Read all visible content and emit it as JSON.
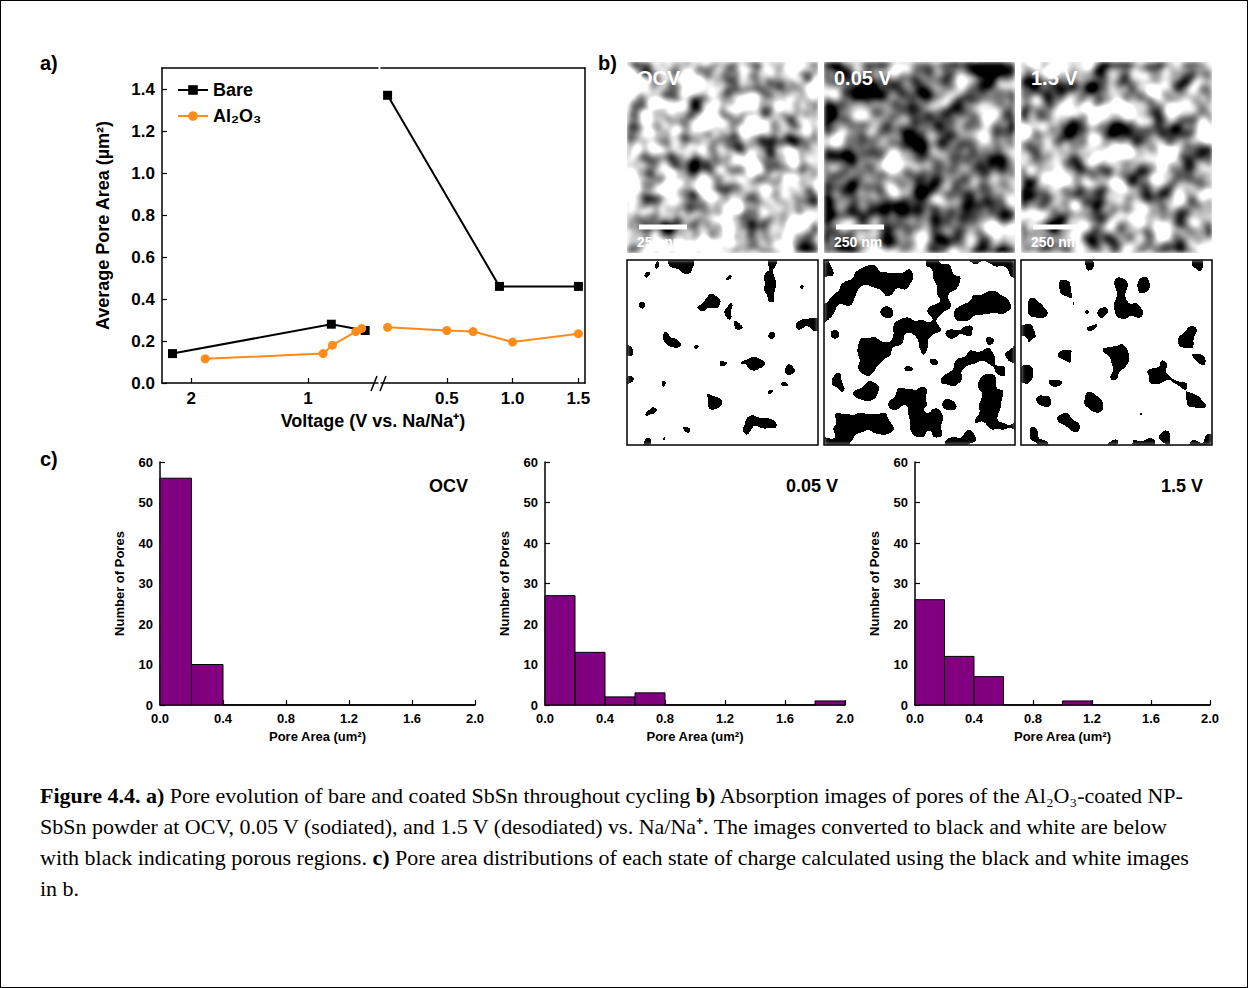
{
  "panel_labels": [
    "a)",
    "b)",
    "c)"
  ],
  "chart_data": [
    {
      "type": "line",
      "xlabel": "Voltage (V vs. Na/Na⁺)",
      "ylabel": "Average Pore Area (µm²)",
      "ylim": [
        0,
        1.5
      ],
      "yticks": [
        {
          "value": 0,
          "label": "0.0"
        },
        0.2,
        0.4,
        0.6,
        0.8,
        {
          "value": 1,
          "label": "1.0"
        },
        1.2,
        1.4
      ],
      "x_segments": [
        {
          "xlim": [
            2.25,
            0.4
          ],
          "xticks": [
            2,
            1
          ]
        },
        {
          "xlim": [
            0,
            1.55
          ],
          "xticks": [
            0.5,
            {
              "value": 1,
              "label": "1.0"
            },
            1.5
          ]
        }
      ],
      "legend": "upper left",
      "series": [
        {
          "name": "Bare",
          "color": "#000000",
          "marker": "square",
          "segments": [
            {
              "x": [
                2.16,
                0.8,
                0.51
              ],
              "values": [
                0.14,
                0.28,
                0.25
              ]
            },
            {
              "x": [
                0.05,
                0.9,
                1.5
              ],
              "values": [
                1.37,
                0.46,
                0.46
              ]
            }
          ]
        },
        {
          "name": "Al₂O₃",
          "color": "#ff8c1a",
          "marker": "circle",
          "segments": [
            {
              "x": [
                1.88,
                0.87,
                0.79,
                0.59,
                0.54
              ],
              "values": [
                0.115,
                0.14,
                0.18,
                0.245,
                0.26
              ]
            },
            {
              "x": [
                0.05,
                0.5,
                0.7,
                1.0,
                1.5
              ],
              "values": [
                0.265,
                0.25,
                0.245,
                0.195,
                0.235
              ]
            }
          ]
        }
      ]
    },
    {
      "type": "histogram",
      "title": "OCV",
      "xlabel": "Pore Area (um²)",
      "ylabel": "Number of Pores",
      "bins": [
        0,
        0.2,
        0.4,
        0.6,
        0.8,
        1,
        1.2,
        1.4,
        1.6,
        1.8,
        2
      ],
      "counts": [
        56,
        10,
        0,
        0,
        0,
        0,
        0,
        0,
        0,
        0
      ],
      "color": "#800080",
      "xlim": [
        0,
        2
      ],
      "xticks": [
        {
          "value": 0,
          "label": "0.0"
        },
        0.4,
        0.8,
        1.2,
        1.6,
        {
          "value": 2,
          "label": "2.0"
        }
      ],
      "ylim": [
        0,
        60
      ],
      "yticks": [
        0,
        10,
        20,
        30,
        40,
        50,
        60
      ]
    },
    {
      "type": "histogram",
      "title": "0.05 V",
      "xlabel": "Pore Area (um²)",
      "ylabel": "Number of Pores",
      "bins": [
        0,
        0.2,
        0.4,
        0.6,
        0.8,
        1,
        1.2,
        1.4,
        1.6,
        1.8,
        2
      ],
      "counts": [
        27,
        13,
        2,
        3,
        0,
        0,
        0,
        0,
        0,
        1
      ],
      "color": "#800080",
      "xlim": [
        0,
        2
      ],
      "xticks": [
        {
          "value": 0,
          "label": "0.0"
        },
        0.4,
        0.8,
        1.2,
        1.6,
        {
          "value": 2,
          "label": "2.0"
        }
      ],
      "ylim": [
        0,
        60
      ],
      "yticks": [
        0,
        10,
        20,
        30,
        40,
        50,
        60
      ]
    },
    {
      "type": "histogram",
      "title": "1.5 V",
      "xlabel": "Pore Area (um²)",
      "ylabel": "Number of Pores",
      "bins": [
        0,
        0.2,
        0.4,
        0.6,
        0.8,
        1,
        1.2,
        1.4,
        1.6,
        1.8,
        2
      ],
      "counts": [
        26,
        12,
        7,
        0,
        0,
        1,
        0,
        0,
        0,
        0
      ],
      "color": "#800080",
      "xlim": [
        0,
        2
      ],
      "xticks": [
        {
          "value": 0,
          "label": "0.0"
        },
        0.4,
        0.8,
        1.2,
        1.6,
        {
          "value": 2,
          "label": "2.0"
        }
      ],
      "ylim": [
        0,
        60
      ],
      "yticks": [
        0,
        10,
        20,
        30,
        40,
        50,
        60
      ]
    }
  ],
  "images": {
    "panels": [
      "OCV",
      "0.05 V",
      "1.5 V"
    ],
    "scale_bar": "250 nm"
  },
  "caption": {
    "figure": "Figure 4.4.",
    "parts": [
      {
        "label": "a)",
        "text": "Pore evolution of bare and coated SbSn throughout cycling"
      },
      {
        "label": "b)",
        "text": "Absorption images of pores of the Al₂O₃-coated NP-SbSn powder at OCV, 0.05 V (sodiated), and 1.5 V (desodiated) vs. Na/Na⁺. The images converted to black and white are below with black indicating porous regions."
      },
      {
        "label": "c)",
        "text": "Pore area distributions of each state of charge calculated using the black and white images in b."
      }
    ]
  }
}
